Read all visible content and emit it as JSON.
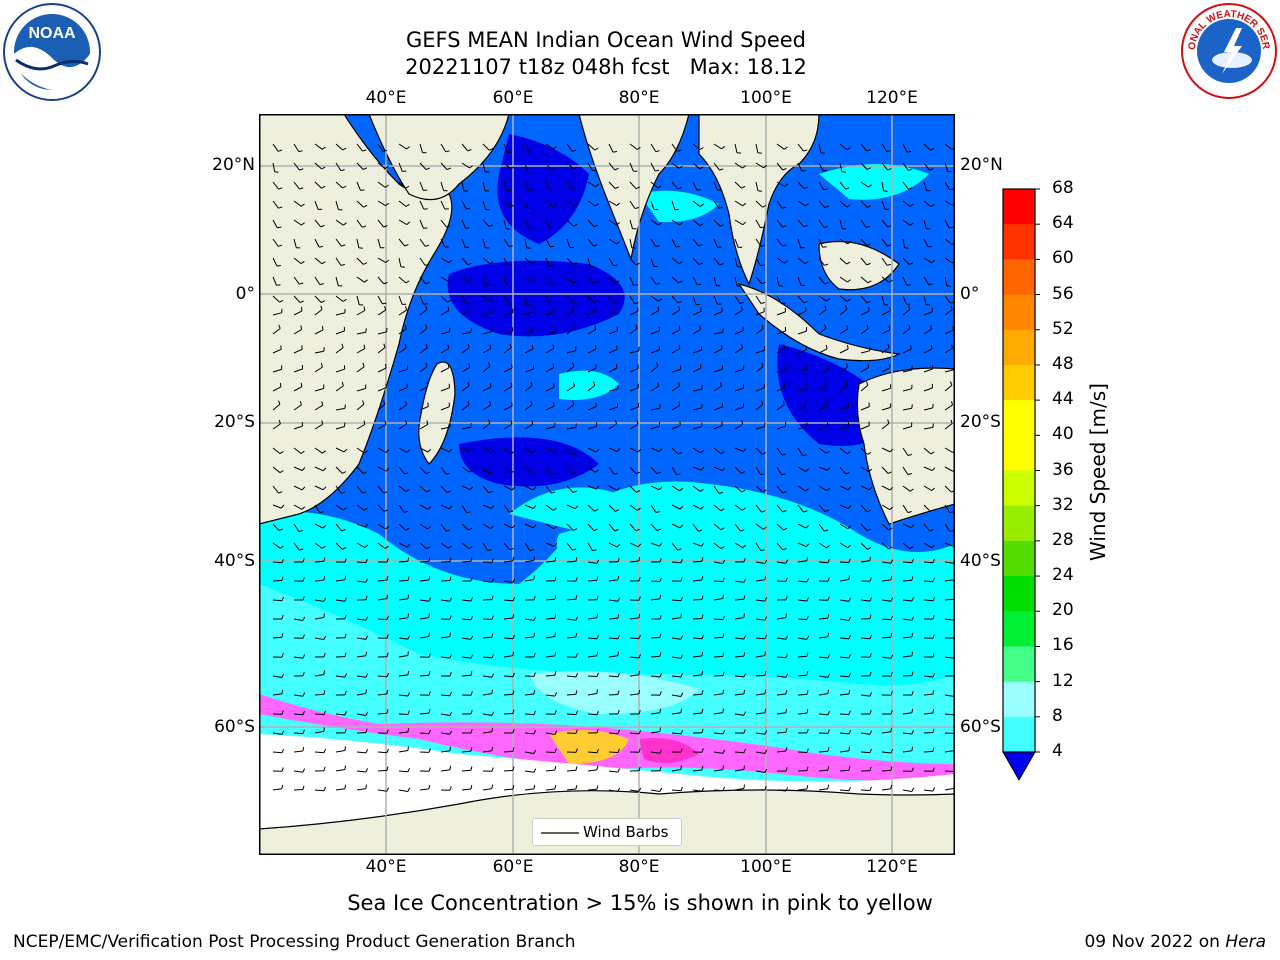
{
  "header": {
    "title_line1": "GEFS MEAN Indian Ocean Wind Speed",
    "title_line2": "20221107 t18z 048h fcst   Max: 18.12"
  },
  "logos": {
    "left": {
      "name": "noaa-logo",
      "text": "NOAA"
    },
    "right": {
      "name": "national-weather-service-logo",
      "text": "NATIONAL WEATHER SERVICE"
    }
  },
  "map": {
    "lon_ticks": [
      "40°E",
      "60°E",
      "80°E",
      "100°E",
      "120°E"
    ],
    "lat_ticks": [
      "20°N",
      "0°",
      "20°S",
      "40°S",
      "60°S"
    ],
    "lon_range": [
      20,
      130
    ],
    "lat_range": [
      -77,
      27
    ],
    "max_wind_speed": 18.12,
    "ocean_colors": {
      "level_4_8": "#0066ff",
      "level_below_4": "#0000e6",
      "level_8_12": "#00ffff",
      "level_12_16": "#44ffff",
      "level_16_20": "#99ffff"
    },
    "land_color": "#efefde",
    "sea_ice_colors": [
      "#ff33cc",
      "#ff66ff",
      "#ffcc33"
    ],
    "legend": {
      "label": "Wind Barbs"
    }
  },
  "colorbar": {
    "label": "Wind Speed [m/s]",
    "ticks": [
      "68",
      "64",
      "60",
      "56",
      "52",
      "48",
      "44",
      "40",
      "36",
      "32",
      "28",
      "24",
      "20",
      "16",
      "12",
      "8",
      "4"
    ],
    "bands": [
      "#ff0000",
      "#ff3300",
      "#ff6600",
      "#ff8800",
      "#ffaa00",
      "#ffcc00",
      "#ffff00",
      "#ffff00",
      "#ccff00",
      "#99ee00",
      "#55dd00",
      "#00dd00",
      "#00ee33",
      "#44ff88",
      "#99ffff",
      "#44ffff",
      "#00ffff",
      "#0066ff"
    ],
    "under_color": "#0000ee"
  },
  "caption": "Sea Ice Concentration > 15% is shown in pink to yellow",
  "footer": {
    "left": "NCEP/EMC/Verification Post Processing Product Generation Branch",
    "right_date": "09 Nov 2022 on ",
    "right_host": "Hera"
  }
}
